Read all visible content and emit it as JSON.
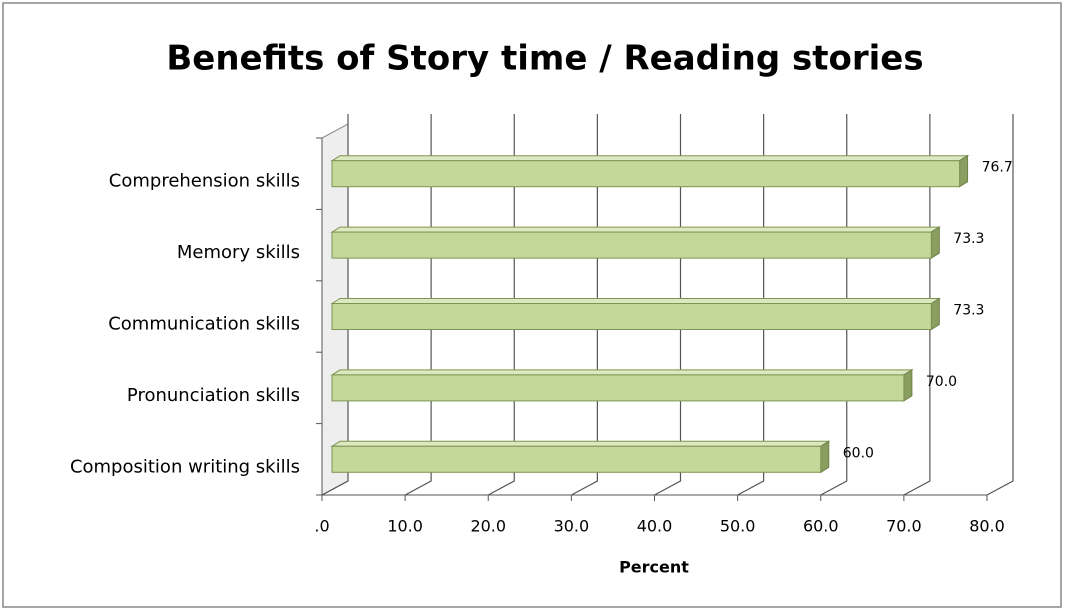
{
  "chart_data": {
    "type": "bar",
    "orientation": "horizontal",
    "title": "Benefits of Story time / Reading stories",
    "categories": [
      "Comprehension skills",
      "Memory skills",
      "Communication skills",
      "Pronunciation skills",
      "Composition writing skills"
    ],
    "values": [
      76.7,
      73.3,
      73.3,
      70.0,
      60.0
    ],
    "value_labels": [
      "76.7",
      "73.3",
      "73.3",
      "70.0",
      "60.0"
    ],
    "color": "#c4d89c",
    "xlabel": "Percent",
    "xlim": [
      0,
      80
    ],
    "xticks": [
      {
        "value": 0,
        "label": ".0"
      },
      {
        "value": 10,
        "label": "10.0"
      },
      {
        "value": 20,
        "label": "20.0"
      },
      {
        "value": 30,
        "label": "30.0"
      },
      {
        "value": 40,
        "label": "40.0"
      },
      {
        "value": 50,
        "label": "50.0"
      },
      {
        "value": 60,
        "label": "60.0"
      },
      {
        "value": 70,
        "label": "70.0"
      },
      {
        "value": 80,
        "label": "80.0"
      }
    ],
    "grid": true
  }
}
